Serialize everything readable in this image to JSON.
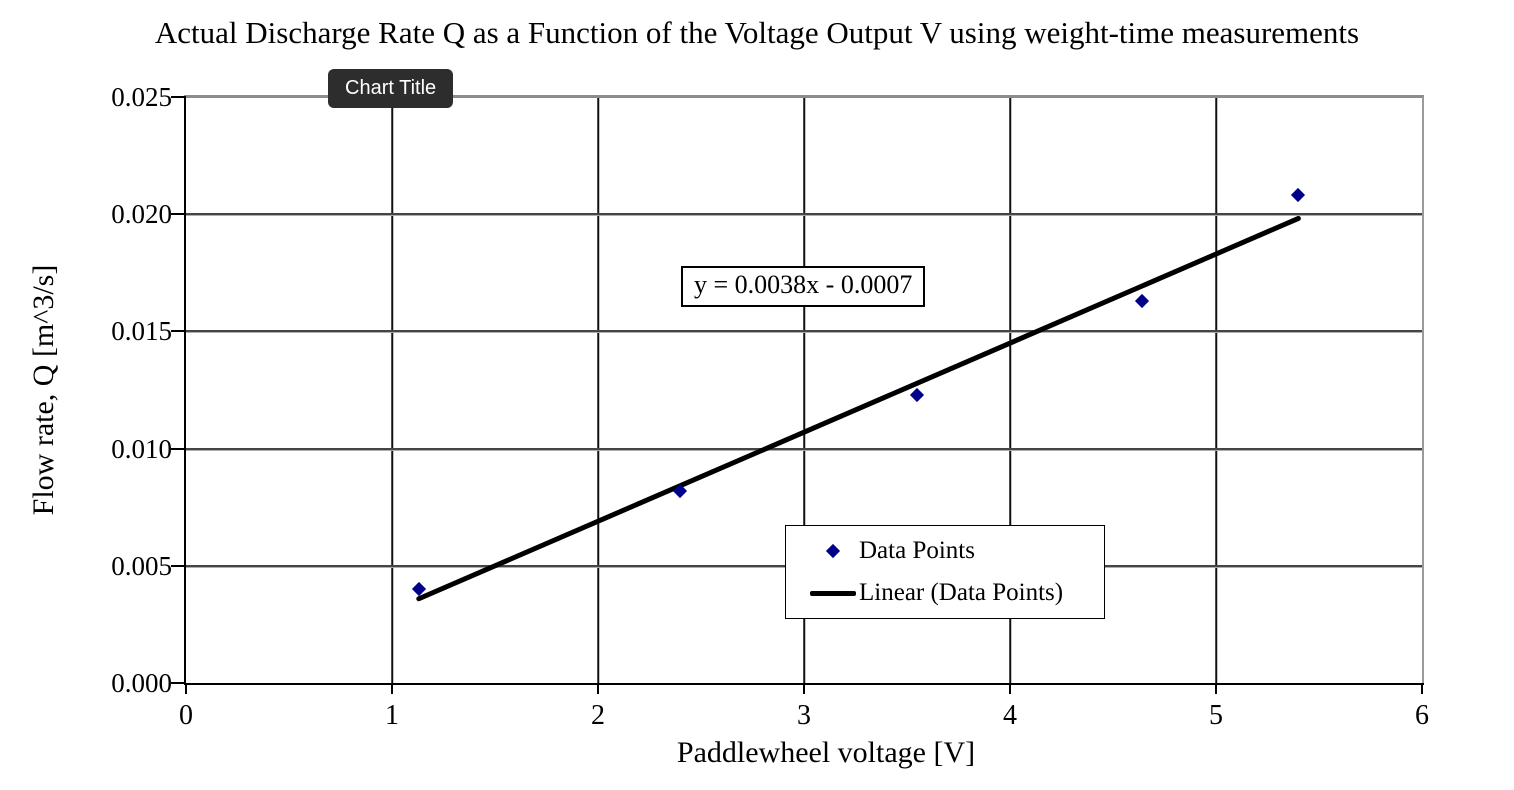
{
  "tooltip": {
    "label": "Chart Title",
    "bg_color": "#2d2d2d",
    "text_color": "#ffffff"
  },
  "colors": {
    "marker": "#00008B",
    "trendline": "#000000",
    "gridline_vertical": "#101010",
    "gridline_horizontal": "#454545",
    "plot_top_border": "#8c8c8c"
  },
  "chart_data": {
    "type": "scatter",
    "title": "Actual Discharge Rate Q as a Function of the Voltage Output V using weight-time measurements",
    "xlabel": "Paddlewheel voltage [V]",
    "ylabel": "Flow rate, Q [m^3/s]",
    "xlim": [
      0,
      6
    ],
    "ylim": [
      0,
      0.025
    ],
    "x_tick_values": [
      0,
      1,
      2,
      3,
      4,
      5,
      6
    ],
    "x_tick_labels": [
      "0",
      "1",
      "2",
      "3",
      "4",
      "5",
      "6"
    ],
    "y_tick_values": [
      0,
      0.005,
      0.01,
      0.015,
      0.02,
      0.025
    ],
    "y_tick_labels": [
      "0.000",
      "0.005",
      "0.010",
      "0.015",
      "0.020",
      "0.025"
    ],
    "grid": true,
    "legend_position": "inside-lower-right",
    "series": [
      {
        "name": "Data Points",
        "type": "scatter",
        "marker": "diamond",
        "color": "#00008B",
        "points": [
          [
            1.13,
            0.004
          ],
          [
            2.4,
            0.0082
          ],
          [
            3.55,
            0.0123
          ],
          [
            4.64,
            0.0163
          ],
          [
            5.4,
            0.0208
          ]
        ]
      },
      {
        "name": "Linear (Data Points)",
        "type": "line",
        "color": "#000000",
        "equation": "y = 0.0038x - 0.0007",
        "slope": 0.0038,
        "intercept": -0.0007,
        "x_range": [
          1.13,
          5.4
        ]
      }
    ]
  }
}
